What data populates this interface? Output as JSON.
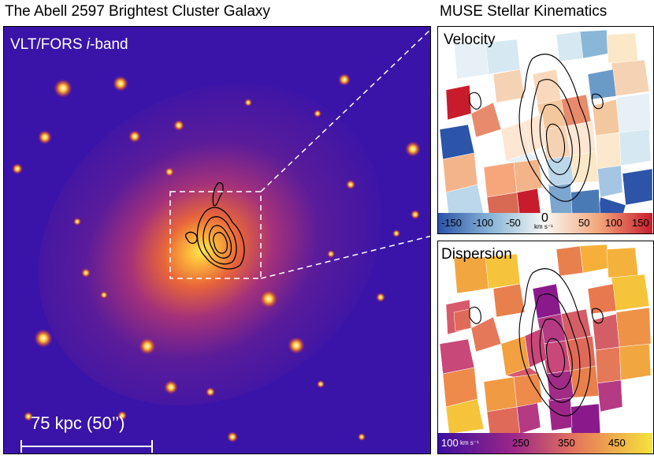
{
  "titles": {
    "main": "The Abell 2597 Brightest Cluster Galaxy",
    "side": "MUSE Stellar Kinematics"
  },
  "main_panel": {
    "label_prefix": "VLT/FORS ",
    "label_band": "i",
    "label_suffix": "-band",
    "scale_bar": "75 kpc (50’’)"
  },
  "velocity_panel": {
    "label": "Velocity",
    "colorbar_ticks": [
      "-150",
      "-100",
      "-50",
      "0",
      "50",
      "100",
      "150"
    ],
    "colorbar_unit": "km s⁻¹"
  },
  "dispersion_panel": {
    "label": "Dispersion",
    "colorbar_ticks": [
      "100",
      "250",
      "350",
      "450"
    ],
    "colorbar_unit": "km s⁻¹"
  },
  "colors": {
    "main_bg": "#3a14a8",
    "main_core": "#ffd23a",
    "vel_neg": "#2c54a8",
    "vel_pos": "#c81c2c",
    "disp_low": "#8a1a8c",
    "disp_high": "#f6c43a"
  }
}
